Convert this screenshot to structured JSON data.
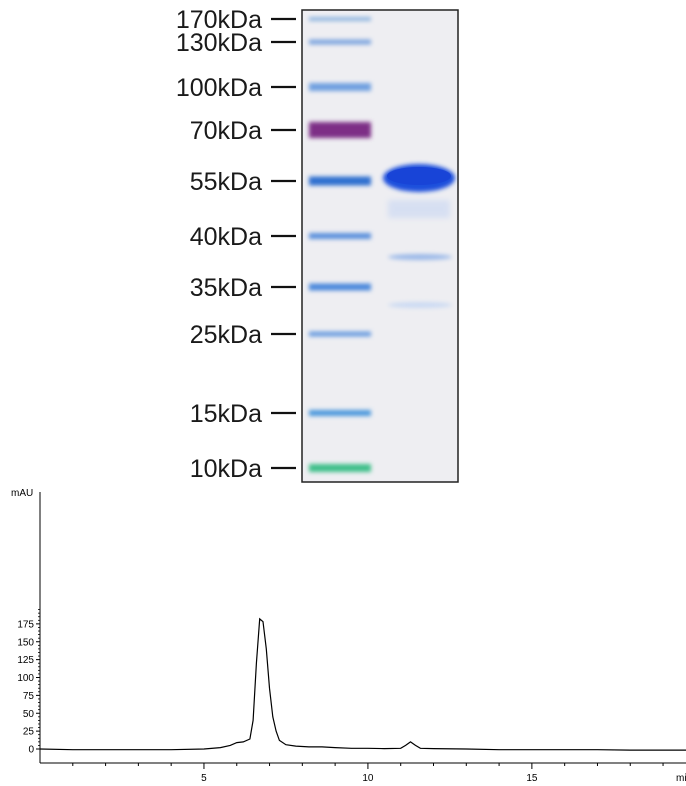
{
  "gel": {
    "ladder": [
      {
        "label": "170kDa",
        "color": "#8fb6df"
      },
      {
        "label": "130kDa",
        "color": "#7ea6df"
      },
      {
        "label": "100kDa",
        "color": "#6fa0e0"
      },
      {
        "label": "70kDa",
        "color": "#7d2f86"
      },
      {
        "label": "55kDa",
        "color": "#2f6fd0"
      },
      {
        "label": "40kDa",
        "color": "#5a8fdc"
      },
      {
        "label": "35kDa",
        "color": "#4c88db"
      },
      {
        "label": "25kDa",
        "color": "#6c9ee0"
      },
      {
        "label": "15kDa",
        "color": "#4b98dc"
      },
      {
        "label": "10kDa",
        "color": "#3fc08a"
      }
    ],
    "sample_main_band_color": "#1f4fdc",
    "sample_faint_band_color": "#9ab8e8",
    "background_color": "#eeeef2"
  },
  "chromatogram": {
    "ylabel": "mAU",
    "xlabel_suffix": "mi",
    "y_ticks": [
      "0",
      "25",
      "50",
      "75",
      "100",
      "125",
      "150",
      "175"
    ],
    "x_ticks": [
      "5",
      "10",
      "15"
    ],
    "line_color": "#000000"
  },
  "chart_data": {
    "type": "line",
    "title": "",
    "xlabel": "mi",
    "ylabel": "mAU",
    "xlim": [
      0,
      19.7
    ],
    "ylim": [
      -8,
      195
    ],
    "series": [
      {
        "x": [
          0,
          1,
          2,
          3,
          4,
          5,
          5.5,
          5.8,
          6.0,
          6.2,
          6.4,
          6.5,
          6.6,
          6.7,
          6.8,
          6.9,
          7.0,
          7.1,
          7.2,
          7.3,
          7.5,
          7.8,
          8.2,
          8.6,
          9.0,
          9.5,
          10.0,
          10.5,
          11.0,
          11.15,
          11.3,
          11.45,
          11.6,
          12.0,
          13.0,
          14.0,
          15.0,
          16.0,
          17.0,
          18.0,
          19.0,
          19.7
        ],
        "y": [
          0,
          -1,
          -1,
          -1,
          -1,
          0,
          2,
          5,
          9,
          10,
          14,
          40,
          120,
          182,
          178,
          140,
          85,
          45,
          25,
          12,
          6,
          4,
          3,
          3,
          2,
          1,
          1,
          0.5,
          1,
          5,
          10,
          5,
          1,
          0.5,
          0,
          -1,
          -1,
          -1,
          -1,
          -1.5,
          -1.5,
          -1.5
        ]
      }
    ]
  }
}
